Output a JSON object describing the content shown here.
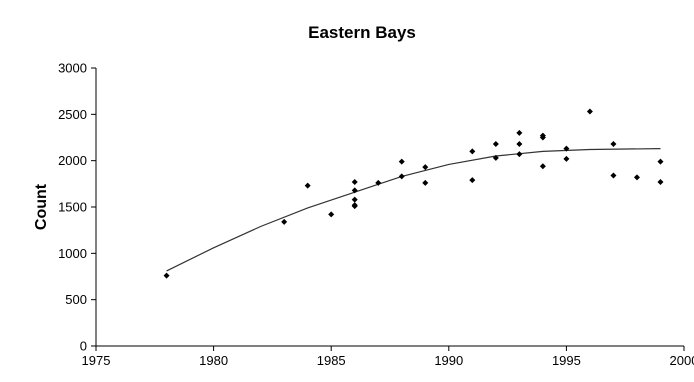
{
  "chart_data": {
    "type": "scatter",
    "title": "Eastern Bays",
    "xlabel": "",
    "ylabel": "Count",
    "xlim": [
      1975,
      2000
    ],
    "ylim": [
      0,
      3000
    ],
    "x_ticks": [
      1975,
      1980,
      1985,
      1990,
      1995,
      2000
    ],
    "y_ticks": [
      0,
      500,
      1000,
      1500,
      2000,
      2500,
      3000
    ],
    "grid": false,
    "legend": "none",
    "colors": {
      "points": "#000000",
      "line": "#333333",
      "axis": "#000000"
    },
    "series": [
      {
        "type": "scatter",
        "points": [
          [
            1978,
            760
          ],
          [
            1983,
            1340
          ],
          [
            1984,
            1730
          ],
          [
            1985,
            1420
          ],
          [
            1986,
            1770
          ],
          [
            1986,
            1680
          ],
          [
            1986,
            1580
          ],
          [
            1986,
            1520
          ],
          [
            1986,
            1510
          ],
          [
            1987,
            1760
          ],
          [
            1988,
            1990
          ],
          [
            1988,
            1830
          ],
          [
            1989,
            1930
          ],
          [
            1989,
            1760
          ],
          [
            1991,
            2100
          ],
          [
            1991,
            1790
          ],
          [
            1992,
            2180
          ],
          [
            1992,
            2030
          ],
          [
            1993,
            2300
          ],
          [
            1993,
            2180
          ],
          [
            1993,
            2070
          ],
          [
            1994,
            2270
          ],
          [
            1994,
            2250
          ],
          [
            1994,
            1940
          ],
          [
            1995,
            2130
          ],
          [
            1995,
            2020
          ],
          [
            1996,
            2530
          ],
          [
            1997,
            2180
          ],
          [
            1997,
            1840
          ],
          [
            1998,
            1820
          ],
          [
            1999,
            1990
          ],
          [
            1999,
            1770
          ]
        ]
      },
      {
        "type": "line",
        "points": [
          [
            1978,
            810
          ],
          [
            1980,
            1060
          ],
          [
            1982,
            1290
          ],
          [
            1984,
            1490
          ],
          [
            1986,
            1660
          ],
          [
            1988,
            1830
          ],
          [
            1990,
            1960
          ],
          [
            1992,
            2050
          ],
          [
            1994,
            2100
          ],
          [
            1996,
            2120
          ],
          [
            1999,
            2130
          ]
        ]
      }
    ]
  }
}
